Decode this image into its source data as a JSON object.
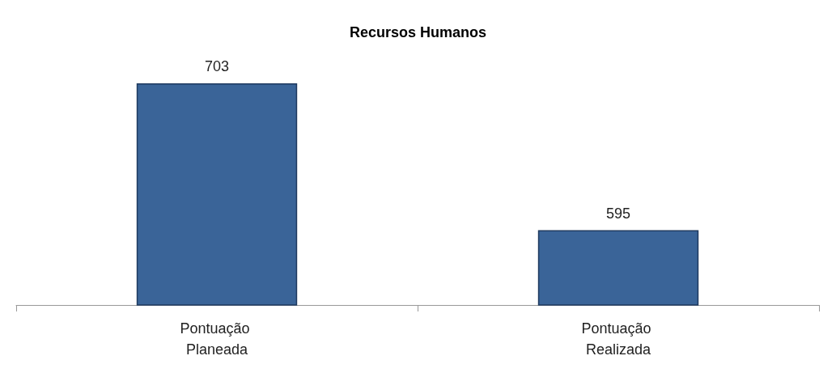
{
  "chart_data": {
    "type": "bar",
    "title": "Recursos Humanos",
    "categories": [
      "Pontuação Planeada",
      "Pontuação Realizada"
    ],
    "values": [
      703,
      595
    ],
    "color": "#3a6498",
    "ylim": [
      540,
      703
    ],
    "data_labels": true,
    "tick_labels": "x",
    "grid": false
  }
}
